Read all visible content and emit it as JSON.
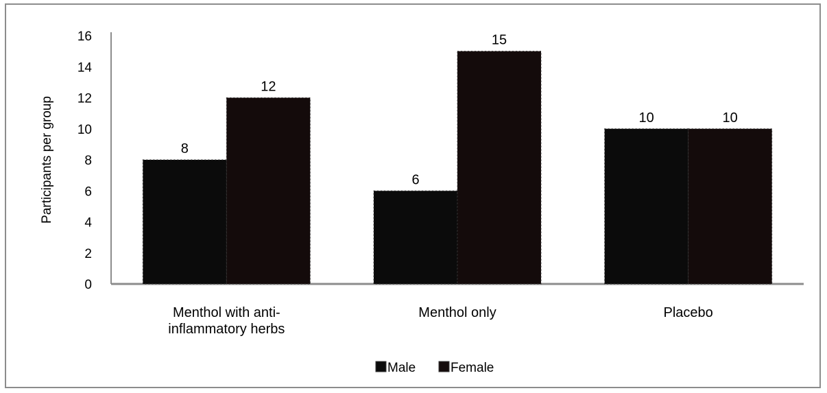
{
  "chart_data": {
    "type": "bar",
    "title": "",
    "xlabel": "",
    "ylabel": "Participants per group",
    "ylim": [
      0,
      16
    ],
    "yticks": [
      0,
      2,
      4,
      6,
      8,
      10,
      12,
      14,
      16
    ],
    "categories": [
      [
        "Menthol with anti-",
        "inflammatory herbs"
      ],
      [
        "Menthol only"
      ],
      [
        "Placebo"
      ]
    ],
    "series": [
      {
        "name": "Male",
        "values": [
          8,
          6,
          10
        ],
        "color": "#0b0b0b"
      },
      {
        "name": "Female",
        "values": [
          12,
          15,
          10
        ],
        "color": "#140b0b"
      }
    ],
    "data_labels": true,
    "grid": false,
    "legend": "bottom"
  }
}
